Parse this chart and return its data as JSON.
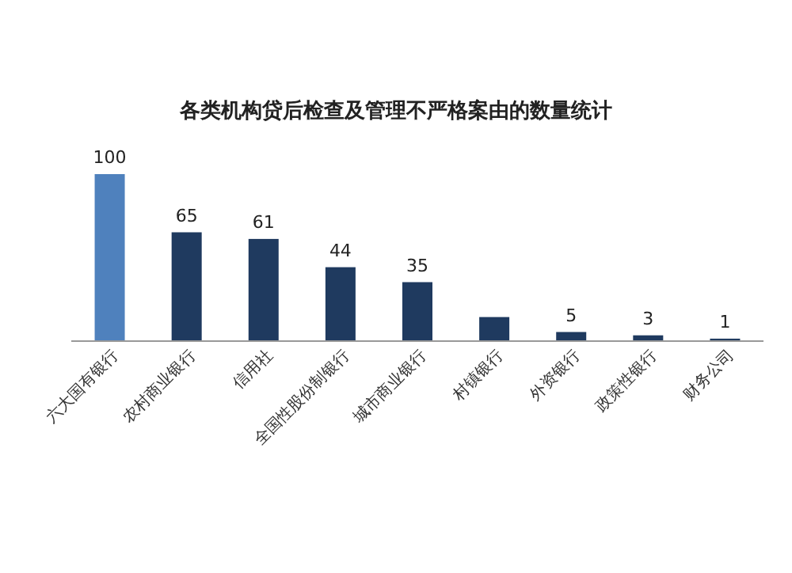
{
  "chart_data": {
    "type": "bar",
    "title": "各类机构贷后检查及管理不严格案由的数量统计",
    "categories": [
      "六大国有银行",
      "农村商业银行",
      "信用社",
      "全国性股份制银行",
      "城市商业银行",
      "村镇银行",
      "外资银行",
      "政策性银行",
      "财务公司"
    ],
    "values": [
      100,
      65,
      61,
      44,
      35,
      14,
      5,
      3,
      1
    ],
    "value_labels": [
      "100",
      "65",
      "61",
      "44",
      "35",
      null,
      "5",
      "3",
      "1"
    ],
    "colors": [
      "#4f81bd",
      "#1f3a5f",
      "#1f3a5f",
      "#1f3a5f",
      "#1f3a5f",
      "#1f3a5f",
      "#1f3a5f",
      "#1f3a5f",
      "#1f3a5f"
    ],
    "relative": false
  }
}
